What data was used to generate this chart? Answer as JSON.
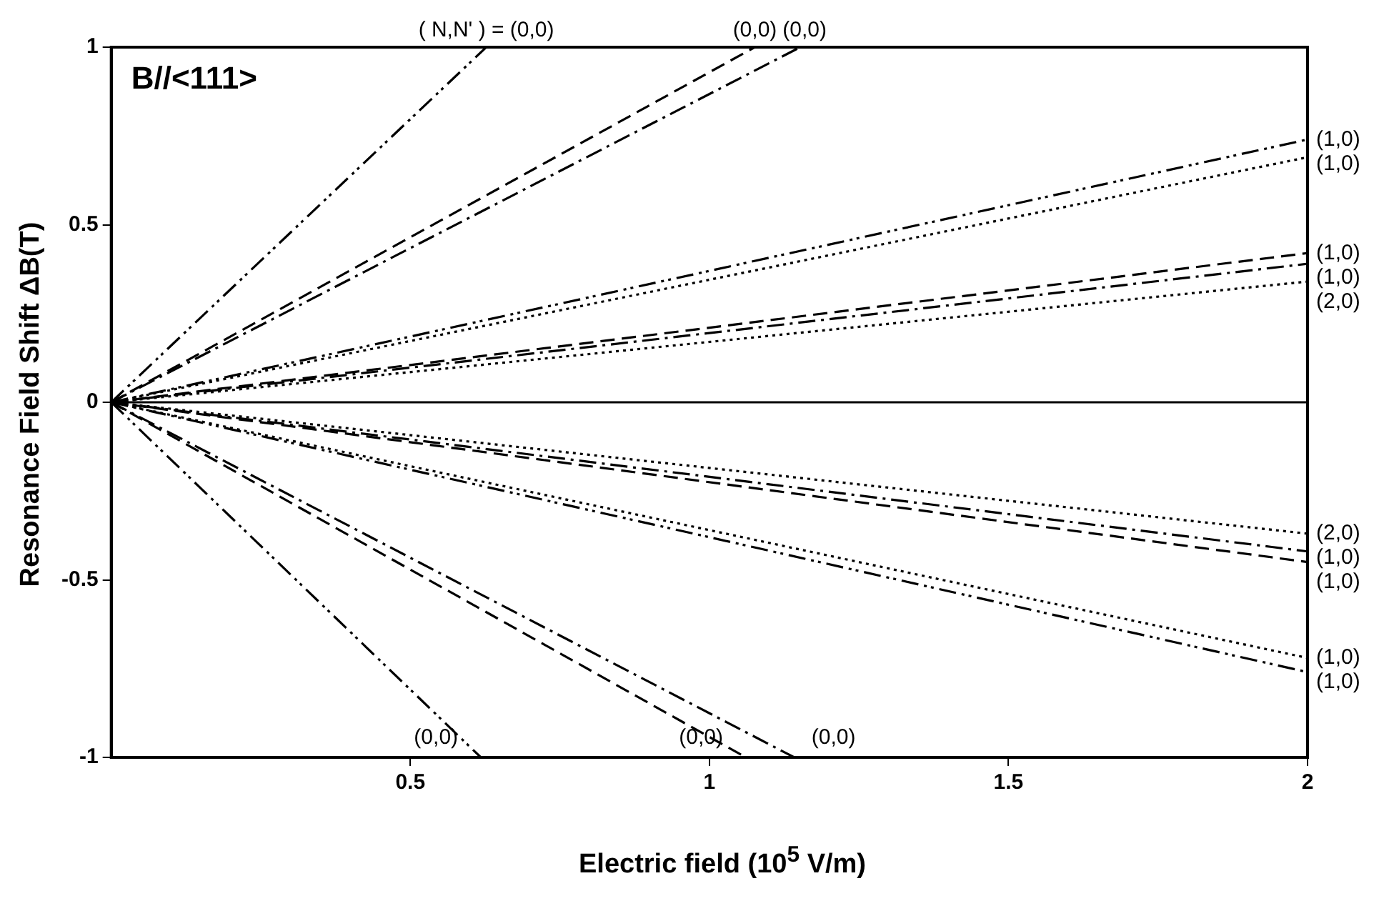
{
  "chart_data": {
    "type": "line",
    "xlabel": "Electric field (10$^{5}$ V/m)",
    "ylabel": "Resonance Field Shift  ΔB(T)",
    "annotations": [
      "B//<111>"
    ],
    "xlim": [
      0,
      2
    ],
    "xticks": [
      0.5,
      1,
      1.5,
      2
    ],
    "ylim": [
      -1,
      1
    ],
    "yticks": [
      -1,
      -0.5,
      0,
      0.5,
      1
    ],
    "grid": false,
    "legend": false,
    "marker": "none",
    "series": [
      {
        "name": "( N,N' ) = (0,0)",
        "color": "#000000",
        "line_style": "dashdotdot",
        "x": [
          0,
          0.627
        ],
        "values": [
          0,
          1
        ]
      },
      {
        "name": "(0,0)",
        "color": "#000000",
        "line_style": "dashed",
        "x": [
          0,
          1.076
        ],
        "values": [
          0,
          1
        ]
      },
      {
        "name": "(0,0)",
        "color": "#000000",
        "line_style": "dashdot",
        "x": [
          0,
          1.152
        ],
        "values": [
          0,
          1
        ]
      },
      {
        "name": "(1,0)",
        "color": "#000000",
        "line_style": "dashdotdot",
        "x": [
          0,
          2
        ],
        "values": [
          0,
          0.74
        ]
      },
      {
        "name": "(1,0)",
        "color": "#000000",
        "line_style": "dotted",
        "x": [
          0,
          2
        ],
        "values": [
          0,
          0.69
        ]
      },
      {
        "name": "(1,0)",
        "color": "#000000",
        "line_style": "dashed",
        "x": [
          0,
          2
        ],
        "values": [
          0,
          0.42
        ]
      },
      {
        "name": "(1,0)",
        "color": "#000000",
        "line_style": "dashdot",
        "x": [
          0,
          2
        ],
        "values": [
          0,
          0.39
        ]
      },
      {
        "name": "(2,0)",
        "color": "#000000",
        "line_style": "dotted",
        "x": [
          0,
          2
        ],
        "values": [
          0,
          0.34
        ]
      },
      {
        "color": "#000000",
        "line_style": "solid",
        "x": [
          0,
          2
        ],
        "values": [
          0,
          0
        ]
      },
      {
        "name": "(2,0)",
        "color": "#000000",
        "line_style": "dotted",
        "x": [
          0,
          2
        ],
        "values": [
          0,
          -0.37
        ]
      },
      {
        "name": "(1,0)",
        "color": "#000000",
        "line_style": "dashdot",
        "x": [
          0,
          2
        ],
        "values": [
          0,
          -0.42
        ]
      },
      {
        "name": "(1,0)",
        "color": "#000000",
        "line_style": "dashed",
        "x": [
          0,
          2
        ],
        "values": [
          0,
          -0.45
        ]
      },
      {
        "name": "(1,0)",
        "color": "#000000",
        "line_style": "dotted",
        "x": [
          0,
          2
        ],
        "values": [
          0,
          -0.72
        ]
      },
      {
        "name": "(1,0)",
        "color": "#000000",
        "line_style": "dashdotdot",
        "x": [
          0,
          2
        ],
        "values": [
          0,
          -0.76
        ]
      },
      {
        "name": "(0,0)",
        "color": "#000000",
        "line_style": "dashdotdot",
        "x": [
          0,
          0.618
        ],
        "values": [
          0,
          -1
        ]
      },
      {
        "name": "(0,0)",
        "color": "#000000",
        "line_style": "dashed",
        "x": [
          0,
          1.061
        ],
        "values": [
          0,
          -1
        ]
      },
      {
        "name": "(0,0)",
        "color": "#000000",
        "line_style": "dashdot",
        "x": [
          0,
          1.142
        ],
        "values": [
          0,
          -1
        ]
      }
    ]
  }
}
